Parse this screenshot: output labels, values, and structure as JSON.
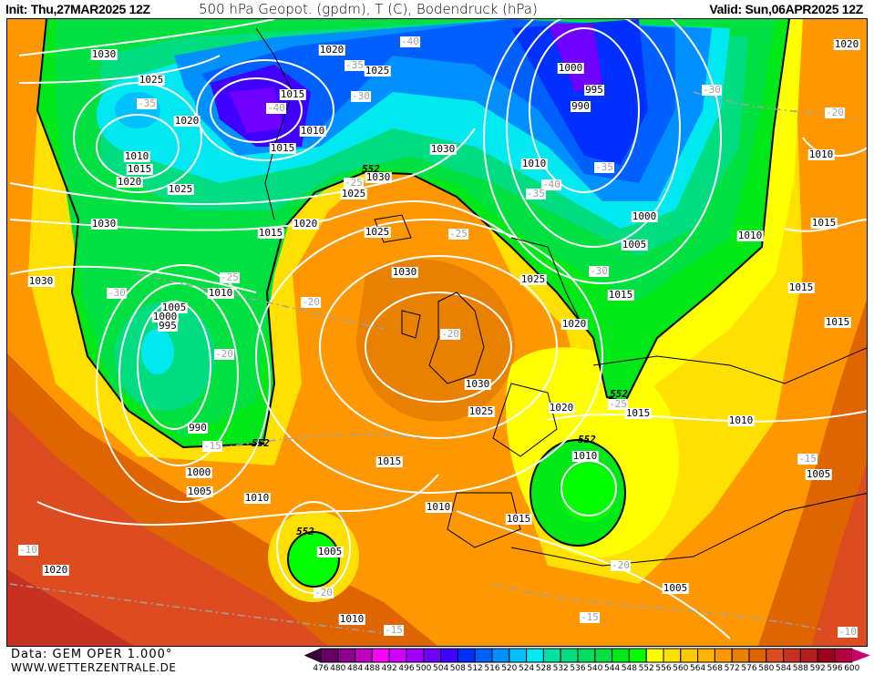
{
  "header": {
    "init": "Init: Thu,27MAR2025 12Z",
    "title": "500 hPa Geopot. (gpdm), T (C), Bodendruck (hPa)",
    "valid": "Valid: Sun,06APR2025 12Z"
  },
  "footer": {
    "data_source": "Data: GEM OPER 1.000°",
    "website": "WWW.WETTERZENTRALE.DE"
  },
  "map": {
    "pressure_labels": [
      "1030",
      "1025",
      "1020",
      "1010",
      "1015",
      "1020",
      "1025",
      "1030",
      "1030",
      "1020",
      "1025",
      "1015",
      "1010",
      "1015",
      "1030",
      "1030",
      "1025",
      "1020",
      "1015",
      "1025",
      "1030",
      "1010",
      "1005",
      "1000",
      "995",
      "990",
      "1000",
      "1005",
      "1010",
      "1015",
      "1010",
      "1015",
      "1005",
      "1020",
      "1010",
      "1030",
      "1025",
      "1020",
      "1015",
      "1010",
      "1010",
      "1005",
      "1005",
      "1000",
      "995",
      "990",
      "1010",
      "1000",
      "1005",
      "1010",
      "1015",
      "1025",
      "1020",
      "1020",
      "1010",
      "1015",
      "1015",
      "1015"
    ],
    "temperature_labels": [
      "-40",
      "-35",
      "-30",
      "-40",
      "-35",
      "-25",
      "-25",
      "-30",
      "-20",
      "-20",
      "-15",
      "-25",
      "-20",
      "-40",
      "-35",
      "-35",
      "-30",
      "-20",
      "-30",
      "-25",
      "-15",
      "-20",
      "-15",
      "-15",
      "-20",
      "-10",
      "-10"
    ],
    "geopotential_labels": [
      "552",
      "552",
      "552",
      "552",
      "552"
    ],
    "colors": {
      "isobar": "#ffffff",
      "isotherm": "#a0a0a0",
      "contour_552": "#000000",
      "coastline": "#000000"
    }
  },
  "colorbar": {
    "ticks": [
      "476",
      "480",
      "484",
      "488",
      "492",
      "496",
      "500",
      "504",
      "508",
      "512",
      "516",
      "520",
      "524",
      "528",
      "532",
      "536",
      "540",
      "544",
      "548",
      "552",
      "556",
      "560",
      "564",
      "568",
      "572",
      "576",
      "580",
      "584",
      "588",
      "592",
      "596",
      "600"
    ],
    "colors": [
      "#660066",
      "#8c008c",
      "#c000c0",
      "#ff00ff",
      "#d000ff",
      "#a000ff",
      "#7000ff",
      "#4000ff",
      "#0030ff",
      "#0060ff",
      "#0090ff",
      "#00c0ff",
      "#00e8f0",
      "#00e0a0",
      "#00dc80",
      "#00dc60",
      "#00e040",
      "#00e818",
      "#00ff00",
      "#ffff00",
      "#ffe000",
      "#ffc800",
      "#ffb400",
      "#ff9800",
      "#e88000",
      "#e06400",
      "#dc4c20",
      "#c83020",
      "#b41e1e",
      "#a00020",
      "#b4003c"
    ],
    "under_color": "#400040",
    "over_color": "#c8006e"
  }
}
